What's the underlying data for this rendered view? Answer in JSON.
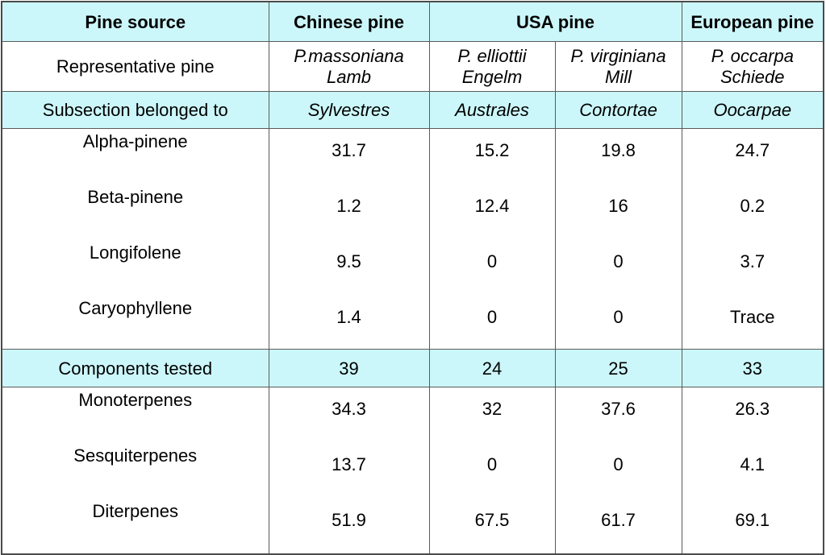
{
  "header": {
    "pine_source": "Pine source",
    "chinese": "Chinese pine",
    "usa": "USA pine",
    "european": "European pine"
  },
  "representative": {
    "label": "Representative pine",
    "species": [
      [
        "P.massoniana",
        "Lamb"
      ],
      [
        "P. elliottii",
        "Engelm"
      ],
      [
        "P. virginiana",
        "Mill"
      ],
      [
        "P. occarpa",
        "Schiede"
      ]
    ]
  },
  "subsection": {
    "label": "Subsection belonged to",
    "values": [
      "Sylvestres",
      "Australes",
      "Contortae",
      "Oocarpae"
    ]
  },
  "constituents": [
    {
      "label": "Alpha-pinene",
      "values": [
        "31.7",
        "15.2",
        "19.8",
        "24.7"
      ]
    },
    {
      "label": "Beta-pinene",
      "values": [
        "1.2",
        "12.4",
        "16",
        "0.2"
      ]
    },
    {
      "label": "Longifolene",
      "values": [
        "9.5",
        "0",
        "0",
        "3.7"
      ]
    },
    {
      "label": "Caryophyllene",
      "values": [
        "1.4",
        "0",
        "0",
        "Trace"
      ]
    }
  ],
  "components_tested": {
    "label": "Components tested",
    "values": [
      "39",
      "24",
      "25",
      "33"
    ]
  },
  "terpenes": [
    {
      "label": "Monoterpenes",
      "values": [
        "34.3",
        "32",
        "37.6",
        "26.3"
      ]
    },
    {
      "label": "Sesquiterpenes",
      "values": [
        "13.7",
        "0",
        "0",
        "4.1"
      ]
    },
    {
      "label": "Diterpenes",
      "values": [
        "51.9",
        "67.5",
        "61.7",
        "69.1"
      ]
    }
  ],
  "colors": {
    "header_bg": "#ccf7fa",
    "border": "#5a5a5a"
  }
}
